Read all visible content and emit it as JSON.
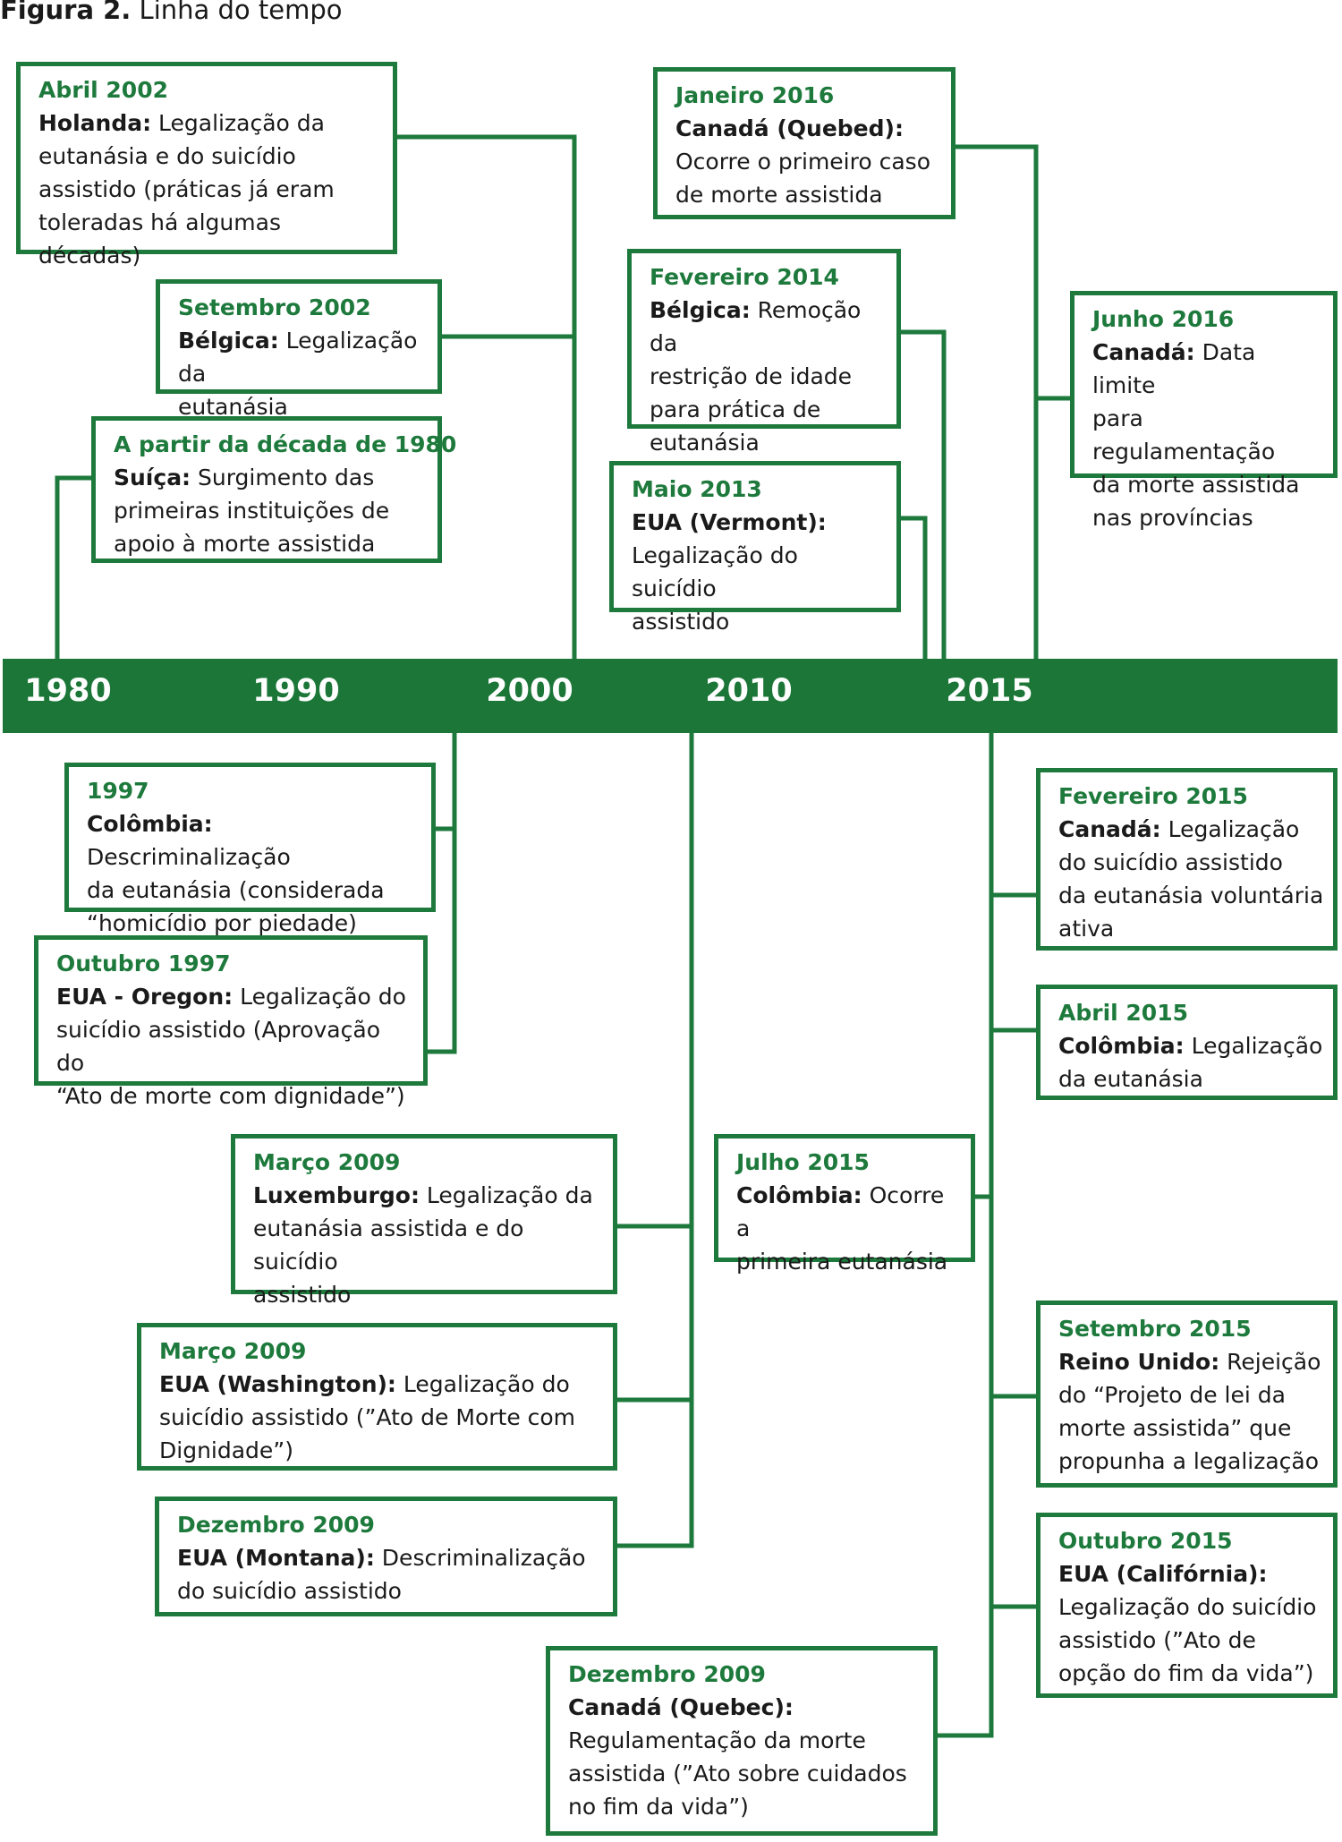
{
  "figure": {
    "label": "Figura 2.",
    "title": "Linha do tempo"
  },
  "colors": {
    "green": "#1e7a3c",
    "bar": "#1c7638",
    "text": "#1a1a1a"
  },
  "axis_years": [
    "1980",
    "1990",
    "2000",
    "2010",
    "2015"
  ],
  "events": [
    {
      "date": "Abril 2002",
      "place": "Holanda:",
      "text": " Legalização da\neutanásia e do suicídio\nassistido (práticas já eram\ntoleradas há algumas décadas)"
    },
    {
      "date": "Setembro 2002",
      "place": "Bélgica:",
      "text": " Legalização da\neutanásia"
    },
    {
      "date": "A partir da década de 1980",
      "place": "Suíça:",
      "text": " Surgimento das\nprimeiras instituições de\napoio à morte assistida"
    },
    {
      "date": "Janeiro 2016",
      "place": "Canadá (Quebed):",
      "text": "\nOcorre o primeiro caso\nde morte assistida"
    },
    {
      "date": "Fevereiro 2014",
      "place": "Bélgica:",
      "text": " Remoção da\nrestrição de idade\npara prática de\neutanásia"
    },
    {
      "date": "Maio 2013",
      "place": "EUA (Vermont):",
      "text": "\nLegalização do suicídio\nassistido"
    },
    {
      "date": "Junho 2016",
      "place": "Canadá:",
      "text": " Data limite\npara regulamentação\nda morte assistida\nnas províncias"
    },
    {
      "date": "1997",
      "place": "Colômbia:",
      "text": " Descriminalização\nda eutanásia (considerada\n“homicídio por piedade)"
    },
    {
      "date": "Outubro 1997",
      "place": "EUA - Oregon:",
      "text": " Legalização do\nsuicídio assistido (Aprovação do\n“Ato de morte com dignidade”)"
    },
    {
      "date": "Março 2009",
      "place": "Luxemburgo:",
      "text": " Legalização da\neutanásia assistida e do suicídio\nassistido"
    },
    {
      "date": "Março 2009",
      "place": "EUA (Washington):",
      "text": " Legalização do\nsuicídio assistido (”Ato de Morte com\nDignidade”)"
    },
    {
      "date": "Dezembro 2009",
      "place": "EUA (Montana):",
      "text": " Descriminalização\ndo suicídio assistido"
    },
    {
      "date": "Dezembro 2009",
      "place": "Canadá (Quebec):",
      "text": "\nRegulamentação da morte\nassistida (”Ato sobre cuidados\nno fim da vida”)"
    },
    {
      "date": "Julho 2015",
      "place": "Colômbia:",
      "text": " Ocorre a\nprimeira eutanásia"
    },
    {
      "date": "Fevereiro 2015",
      "place": "Canadá:",
      "text": "  Legalização\ndo suicídio assistido\nda eutanásia voluntária\nativa"
    },
    {
      "date": "Abril 2015",
      "place": "Colômbia:",
      "text": "  Legalização\nda eutanásia"
    },
    {
      "date": "Setembro 2015",
      "place": "Reino Unido:",
      "text": "  Rejeição\ndo “Projeto de lei da\nmorte assistida” que\npropunha a legalização"
    },
    {
      "date": "Outubro 2015",
      "place": "EUA (Califórnia):",
      "text": "\nLegalização do suicídio\nassistido (”Ato de\nopção do fim da vida”)"
    }
  ]
}
